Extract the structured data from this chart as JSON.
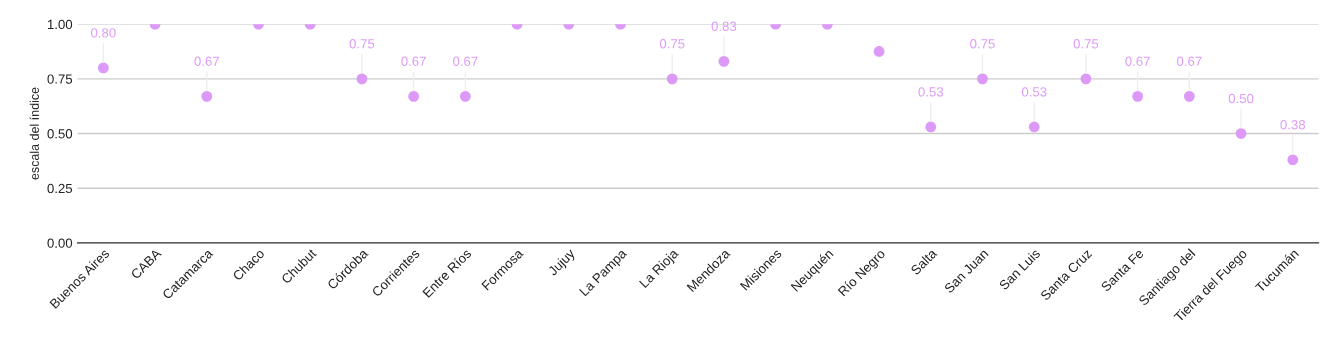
{
  "chart_data": {
    "type": "scatter",
    "ylabel": "escala del índice",
    "categories": [
      "Buenos Aires",
      "CABA",
      "Catamarca",
      "Chaco",
      "Chubut",
      "Córdoba",
      "Corrientes",
      "Entre Ríos",
      "Formosa",
      "Jujuy",
      "La Pampa",
      "La Rioja",
      "Mendoza",
      "Misiones",
      "Neuquén",
      "Río Negro",
      "Salta",
      "San Juan",
      "San Luis",
      "Santa Cruz",
      "Santa Fe",
      "Santiago del",
      "Tierra del Fuego",
      "Tucumán"
    ],
    "values": [
      0.8,
      1.0,
      0.67,
      1.0,
      1.0,
      0.75,
      0.67,
      0.67,
      1.0,
      1.0,
      1.0,
      0.75,
      0.83,
      1.0,
      1.0,
      0.875,
      0.53,
      0.75,
      0.53,
      0.75,
      0.67,
      0.67,
      0.5,
      0.38
    ],
    "value_labels": [
      "0.80",
      null,
      "0.67",
      null,
      null,
      "0.75",
      "0.67",
      "0.67",
      null,
      null,
      null,
      "0.75",
      "0.83",
      null,
      null,
      null,
      "0.53",
      "0.75",
      "0.53",
      "0.75",
      "0.67",
      "0.67",
      "0.50",
      "0.38"
    ],
    "color": "#dd99f7",
    "ylim": [
      0,
      1
    ],
    "yticks": [
      {
        "value": 0,
        "label": "0.00"
      },
      {
        "value": 0.25,
        "label": "0.25"
      },
      {
        "value": 0.5,
        "label": "0.50"
      },
      {
        "value": 0.75,
        "label": "0.75"
      },
      {
        "value": 1,
        "label": "1.00"
      }
    ],
    "grid": "y",
    "marker": "circle",
    "legend": false
  }
}
